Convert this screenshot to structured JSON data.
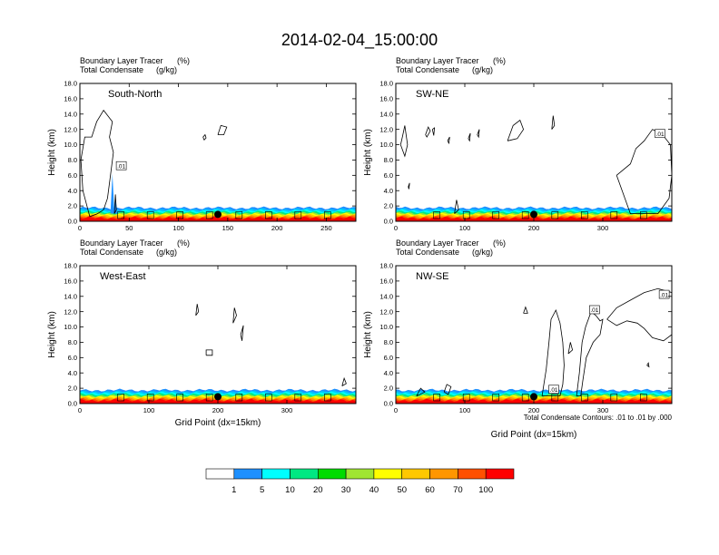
{
  "title": "2014-02-04_15:00:00",
  "header_lines": [
    "Boundary Layer Tracer",
    "(%)",
    "Total Condensate",
    "(g/kg)"
  ],
  "xlabel": "Grid Point (dx=15km)",
  "ylabel": "Height (km)",
  "contour_note": "Total Condensate Contours: .01 to .01 by .000",
  "colors": {
    "levels": [
      "#ffffff",
      "#1e90ff",
      "#00c8ff",
      "#00ffff",
      "#00e882",
      "#00dc00",
      "#a0e632",
      "#ffff00",
      "#ffc800",
      "#ff9600",
      "#ff5000",
      "#ff0000"
    ],
    "black": "#000000"
  },
  "colorbar": {
    "labels": [
      "1",
      "5",
      "10",
      "20",
      "30",
      "40",
      "50",
      "60",
      "70",
      "100"
    ],
    "fills": [
      "#ffffff",
      "#1e90ff",
      "#00ffff",
      "#00e882",
      "#00dc00",
      "#a0e632",
      "#ffff00",
      "#ffc800",
      "#ff9600",
      "#ff5000",
      "#ff0000"
    ]
  },
  "chart_data": [
    {
      "type": "heatmap",
      "name": "South-North",
      "xlim": [
        0,
        280
      ],
      "ylim": [
        0,
        18
      ],
      "xticks": [
        "0",
        "50",
        "100",
        "150",
        "200",
        "250"
      ],
      "yticks": [
        "0.0",
        "2.0",
        "4.0",
        "6.0",
        "8.0",
        "10.0",
        "12.0",
        "14.0",
        "16.0",
        "18.0"
      ],
      "xtick_values": [
        0,
        50,
        100,
        150,
        200,
        250
      ],
      "marker_x": 140,
      "contour_labels": [
        {
          "text": ".01",
          "x": 42,
          "y": 7.2
        }
      ],
      "clouds": [
        [
          [
            10,
            0.6
          ],
          [
            3,
            4
          ],
          [
            1,
            8
          ],
          [
            5,
            11
          ],
          [
            12,
            11
          ],
          [
            17,
            13
          ],
          [
            24,
            14.5
          ],
          [
            33,
            13
          ],
          [
            30,
            11
          ],
          [
            34,
            9
          ],
          [
            31,
            6
          ],
          [
            28,
            3
          ],
          [
            24,
            1.5
          ],
          [
            18,
            1
          ],
          [
            10,
            0.6
          ]
        ],
        [
          [
            126,
            10.6
          ],
          [
            128,
            10.9
          ],
          [
            127,
            11.3
          ],
          [
            125,
            11
          ],
          [
            126,
            10.6
          ]
        ],
        [
          [
            140,
            11.3
          ],
          [
            143,
            12.5
          ],
          [
            149,
            12.3
          ],
          [
            146,
            11.3
          ],
          [
            140,
            11.3
          ]
        ],
        [
          [
            35,
            1
          ],
          [
            36,
            3.5
          ],
          [
            37,
            1.5
          ],
          [
            35,
            1
          ]
        ]
      ],
      "spikes": [
        {
          "x": 33,
          "top": 6.2
        },
        {
          "x": 36,
          "top": 3.2
        }
      ]
    },
    {
      "type": "heatmap",
      "name": "SW-NE",
      "xlim": [
        0,
        400
      ],
      "ylim": [
        0,
        18
      ],
      "xticks": [
        "0",
        "100",
        "200",
        "300"
      ],
      "yticks": [
        "0.0",
        "2.0",
        "4.0",
        "6.0",
        "8.0",
        "10.0",
        "12.0",
        "14.0",
        "16.0",
        "18.0"
      ],
      "xtick_values": [
        0,
        100,
        200,
        300
      ],
      "marker_x": 200,
      "contour_labels": [
        {
          "text": ".01",
          "x": 383,
          "y": 11.4
        }
      ],
      "clouds": [
        [
          [
            7,
            10
          ],
          [
            10,
            11.2
          ],
          [
            13,
            12.5
          ],
          [
            17,
            10
          ],
          [
            13,
            8.5
          ],
          [
            7,
            10
          ]
        ],
        [
          [
            43,
            11.3
          ],
          [
            47,
            12.3
          ],
          [
            50,
            11.8
          ],
          [
            45,
            11
          ],
          [
            43,
            11.3
          ]
        ],
        [
          [
            53,
            12
          ],
          [
            56,
            12.2
          ],
          [
            55,
            11.2
          ],
          [
            53,
            12
          ]
        ],
        [
          [
            75,
            10.5
          ],
          [
            78,
            11
          ],
          [
            77,
            10.2
          ],
          [
            75,
            10.5
          ]
        ],
        [
          [
            105,
            10.8
          ],
          [
            108,
            11.5
          ],
          [
            107,
            10.5
          ],
          [
            105,
            10.8
          ]
        ],
        [
          [
            118,
            11.3
          ],
          [
            121,
            12
          ],
          [
            120,
            11
          ],
          [
            118,
            11.3
          ]
        ],
        [
          [
            162,
            10.5
          ],
          [
            170,
            12.5
          ],
          [
            180,
            13.2
          ],
          [
            185,
            12
          ],
          [
            176,
            10.8
          ],
          [
            162,
            10.5
          ]
        ],
        [
          [
            226,
            12
          ],
          [
            228,
            13.8
          ],
          [
            230,
            12.5
          ],
          [
            226,
            12
          ]
        ],
        [
          [
            320,
            6
          ],
          [
            340,
            7.5
          ],
          [
            348,
            9.5
          ],
          [
            360,
            10.5
          ],
          [
            372,
            12
          ],
          [
            385,
            11.5
          ],
          [
            398,
            10
          ],
          [
            400,
            6
          ],
          [
            396,
            3
          ],
          [
            380,
            1
          ],
          [
            340,
            1
          ],
          [
            320,
            6
          ]
        ],
        [
          [
            18,
            4.5
          ],
          [
            20,
            5
          ],
          [
            19,
            4.2
          ],
          [
            18,
            4.5
          ]
        ],
        [
          [
            85,
            1
          ],
          [
            88,
            2.8
          ],
          [
            91,
            1.5
          ],
          [
            85,
            1
          ]
        ]
      ],
      "spikes": []
    },
    {
      "type": "heatmap",
      "name": "West-East",
      "xlim": [
        0,
        400
      ],
      "ylim": [
        0,
        18
      ],
      "xticks": [
        "0",
        "100",
        "200",
        "300"
      ],
      "yticks": [
        "0.0",
        "2.0",
        "4.0",
        "6.0",
        "8.0",
        "10.0",
        "12.0",
        "14.0",
        "16.0",
        "18.0"
      ],
      "xtick_values": [
        0,
        100,
        200,
        300
      ],
      "marker_x": 200,
      "contour_labels": [],
      "clouds": [
        [
          [
            168,
            11.5
          ],
          [
            170,
            13
          ],
          [
            172,
            12
          ],
          [
            168,
            11.5
          ]
        ],
        [
          [
            222,
            10.5
          ],
          [
            224,
            12.5
          ],
          [
            227,
            11.5
          ],
          [
            222,
            10.5
          ]
        ],
        [
          [
            233,
            9
          ],
          [
            237,
            10.2
          ],
          [
            235,
            8.2
          ],
          [
            233,
            9
          ]
        ],
        [
          [
            183,
            6.3
          ],
          [
            183,
            7
          ],
          [
            192,
            7
          ],
          [
            192,
            6.3
          ],
          [
            183,
            6.3
          ]
        ],
        [
          [
            380,
            2.3
          ],
          [
            383,
            3.3
          ],
          [
            386,
            2.6
          ],
          [
            380,
            2.3
          ]
        ]
      ],
      "spikes": []
    },
    {
      "type": "heatmap",
      "name": "NW-SE",
      "xlim": [
        0,
        400
      ],
      "ylim": [
        0,
        18
      ],
      "xticks": [
        "0",
        "100",
        "200",
        "300"
      ],
      "yticks": [
        "0.0",
        "2.0",
        "4.0",
        "6.0",
        "8.0",
        "10.0",
        "12.0",
        "14.0",
        "16.0",
        "18.0"
      ],
      "xtick_values": [
        0,
        100,
        200,
        300
      ],
      "marker_x": 200,
      "contour_labels": [
        {
          "text": ".01",
          "x": 229,
          "y": 1.8
        },
        {
          "text": ".01",
          "x": 288,
          "y": 12.2
        },
        {
          "text": ".01",
          "x": 389,
          "y": 14.2
        }
      ],
      "clouds": [
        [
          [
            212,
            1
          ],
          [
            218,
            4.5
          ],
          [
            222,
            8
          ],
          [
            225,
            11
          ],
          [
            232,
            12.2
          ],
          [
            238,
            10.5
          ],
          [
            242,
            8
          ],
          [
            244,
            5
          ],
          [
            242,
            2.5
          ],
          [
            238,
            1
          ],
          [
            212,
            1
          ]
        ],
        [
          [
            262,
            1
          ],
          [
            266,
            4
          ],
          [
            270,
            8
          ],
          [
            275,
            10
          ],
          [
            283,
            12
          ],
          [
            290,
            11.5
          ],
          [
            296,
            10.8
          ],
          [
            300,
            11
          ],
          [
            296,
            9
          ],
          [
            286,
            8
          ],
          [
            276,
            6
          ],
          [
            271,
            3
          ],
          [
            268,
            1
          ],
          [
            262,
            1
          ]
        ],
        [
          [
            306,
            11
          ],
          [
            320,
            12.5
          ],
          [
            340,
            13.5
          ],
          [
            360,
            14.5
          ],
          [
            380,
            15
          ],
          [
            400,
            14.5
          ],
          [
            400,
            9
          ],
          [
            388,
            8.2
          ],
          [
            372,
            8.6
          ],
          [
            360,
            9.8
          ],
          [
            350,
            10.5
          ],
          [
            335,
            10.8
          ],
          [
            320,
            10.2
          ],
          [
            306,
            11
          ]
        ],
        [
          [
            185,
            11.8
          ],
          [
            188,
            12.6
          ],
          [
            191,
            11.8
          ],
          [
            185,
            11.8
          ]
        ],
        [
          [
            250,
            6.5
          ],
          [
            253,
            8
          ],
          [
            256,
            7
          ],
          [
            250,
            6.5
          ]
        ],
        [
          [
            364,
            5
          ],
          [
            366,
            5.3
          ],
          [
            367,
            4.8
          ],
          [
            364,
            5
          ]
        ],
        [
          [
            70,
            1.5
          ],
          [
            74,
            2.5
          ],
          [
            80,
            2.2
          ],
          [
            76,
            1.2
          ],
          [
            70,
            1.5
          ]
        ],
        [
          [
            30,
            1
          ],
          [
            36,
            2
          ],
          [
            42,
            1.5
          ],
          [
            30,
            1
          ]
        ]
      ],
      "spikes": []
    }
  ]
}
